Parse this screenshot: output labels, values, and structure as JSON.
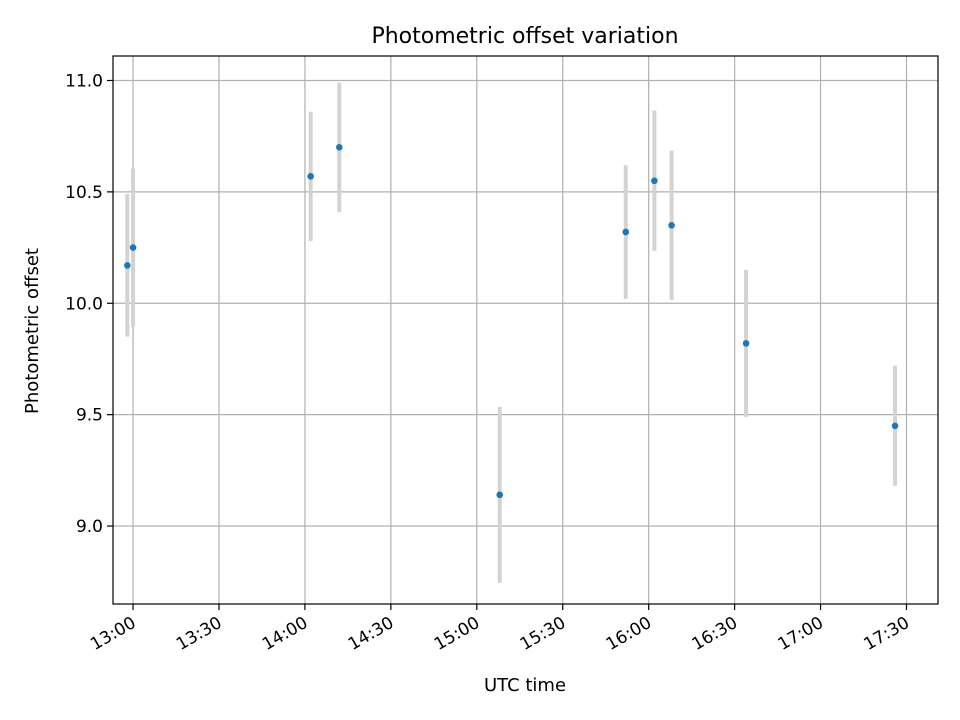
{
  "chart_data": {
    "type": "scatter",
    "title": "Photometric offset variation",
    "xlabel": "UTC time",
    "ylabel": "Photometric offset",
    "x_tick_labels": [
      "13:00",
      "13:30",
      "14:00",
      "14:30",
      "15:00",
      "15:30",
      "16:00",
      "16:30",
      "17:00",
      "17:30"
    ],
    "x_ticks": [
      "13:00",
      "13:30",
      "14:00",
      "14:30",
      "15:00",
      "15:30",
      "16:00",
      "16:30",
      "17:00",
      "17:30"
    ],
    "xlim": [
      "12:53",
      "17:41"
    ],
    "y_ticks": [
      9.0,
      9.5,
      10.0,
      10.5,
      11.0
    ],
    "y_tick_labels": [
      "9.0",
      "9.5",
      "10.0",
      "10.5",
      "11.0"
    ],
    "ylim": [
      8.65,
      11.11
    ],
    "grid": true,
    "point_color": "#1f77b4",
    "errorbar_color": "#d3d3d3",
    "series": [
      {
        "points": [
          {
            "x": "12:58",
            "y": 10.17,
            "yerr": 0.32
          },
          {
            "x": "13:00",
            "y": 10.25,
            "yerr": 0.355
          },
          {
            "x": "14:02",
            "y": 10.57,
            "yerr": 0.29
          },
          {
            "x": "14:12",
            "y": 10.7,
            "yerr": 0.29
          },
          {
            "x": "15:08",
            "y": 9.14,
            "yerr": 0.395
          },
          {
            "x": "15:52",
            "y": 10.32,
            "yerr": 0.3
          },
          {
            "x": "16:02",
            "y": 10.55,
            "yerr": 0.315
          },
          {
            "x": "16:08",
            "y": 10.35,
            "yerr": 0.335
          },
          {
            "x": "16:34",
            "y": 9.82,
            "yerr": 0.33
          },
          {
            "x": "17:26",
            "y": 9.45,
            "yerr": 0.27
          }
        ]
      }
    ]
  }
}
